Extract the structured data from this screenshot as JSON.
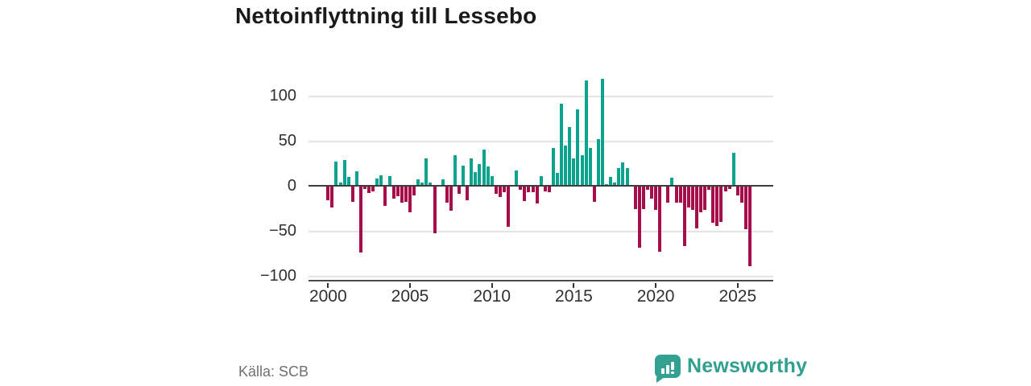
{
  "title": "Nettoinflyttning till Lessebo",
  "source_label": "Källa: SCB",
  "logo": {
    "label": "Newsworthy",
    "icon": "bar-chart-bubble-icon"
  },
  "colors": {
    "positive": "#0ba38f",
    "negative": "#a60d4b",
    "zero_line": "#3d3d3d",
    "gridline": "#e4e4e4",
    "axis_text": "#303030",
    "title_text": "#1a1a1a",
    "source_text": "#6f6f6f",
    "logo_teal": "#33a192"
  },
  "chart_data": {
    "type": "bar",
    "title": "Nettoinflyttning till Lessebo",
    "xlabel": "",
    "ylabel": "",
    "frequency": "quarterly",
    "start_quarter": "2000-Q1",
    "end_quarter": "2025-Q4",
    "ylim": [
      -100,
      125
    ],
    "grid": true,
    "legend": "none",
    "y_ticks": [
      100,
      50,
      0,
      -50,
      -100
    ],
    "y_tick_labels": [
      "100",
      "50",
      "0",
      "−50",
      "−100"
    ],
    "x_ticks": [
      2000,
      2005,
      2010,
      2015,
      2020,
      2025
    ],
    "x_tick_labels": [
      "2000",
      "2005",
      "2010",
      "2015",
      "2020",
      "2025"
    ],
    "values": [
      -15,
      -23,
      27,
      4,
      29,
      10,
      -17,
      16,
      -73,
      -3,
      -7,
      -5,
      8,
      12,
      -21,
      11,
      -13,
      -11,
      -18,
      -17,
      -29,
      -10,
      7,
      4,
      30,
      4,
      -52,
      0,
      7,
      -18,
      -27,
      34,
      -8,
      22,
      -15,
      30,
      15,
      24,
      40,
      21,
      11,
      -8,
      -12,
      -6,
      -45,
      0,
      17,
      -4,
      -16,
      -6,
      -6,
      -19,
      11,
      -5,
      -6,
      42,
      14,
      91,
      45,
      65,
      30,
      85,
      34,
      117,
      42,
      -17,
      52,
      119,
      2,
      10,
      4,
      20,
      26,
      20,
      0,
      -25,
      -68,
      -25,
      -4,
      -13,
      -26,
      -72,
      0,
      -18,
      9,
      -18,
      -18,
      -66,
      -23,
      -26,
      -46,
      -29,
      -26,
      -4,
      -40,
      -44,
      -39,
      -5,
      -3,
      37,
      -10,
      -18,
      -47,
      -88
    ]
  }
}
